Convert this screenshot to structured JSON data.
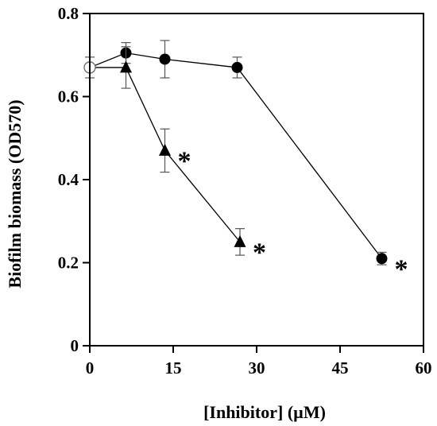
{
  "chart_data": {
    "type": "scatter",
    "xlabel": "[Inhibitor] (µM)",
    "ylabel": "Biofilm biomass (OD570)",
    "xlim": [
      0,
      60
    ],
    "ylim": [
      0,
      0.8
    ],
    "xticks": [
      0,
      15,
      30,
      45,
      60
    ],
    "yticks": [
      0,
      0.2,
      0.4,
      0.6,
      0.8
    ],
    "xtick_labels": [
      "0",
      "15",
      "30",
      "45",
      "60"
    ],
    "ytick_labels": [
      "0",
      "0.2",
      "0.4",
      "0.6",
      "0.8"
    ],
    "grid": false,
    "legend": "none",
    "control": {
      "x": 0,
      "y": 0.67,
      "err": 0.025,
      "marker": "open-circle"
    },
    "series": [
      {
        "marker": "filled-circle",
        "connect_from_control": true,
        "points": [
          {
            "x": 6.5,
            "y": 0.705,
            "err": 0.025,
            "sig": ""
          },
          {
            "x": 13.5,
            "y": 0.69,
            "err": 0.045,
            "sig": ""
          },
          {
            "x": 26.5,
            "y": 0.67,
            "err": 0.025,
            "sig": ""
          },
          {
            "x": 52.5,
            "y": 0.21,
            "err": 0.015,
            "sig": "*"
          }
        ]
      },
      {
        "marker": "filled-triangle",
        "connect_from_control": true,
        "points": [
          {
            "x": 6.5,
            "y": 0.67,
            "err": 0.05,
            "sig": ""
          },
          {
            "x": 13.5,
            "y": 0.47,
            "err": 0.052,
            "sig": "*"
          },
          {
            "x": 27,
            "y": 0.25,
            "err": 0.032,
            "sig": "*"
          }
        ]
      }
    ]
  }
}
